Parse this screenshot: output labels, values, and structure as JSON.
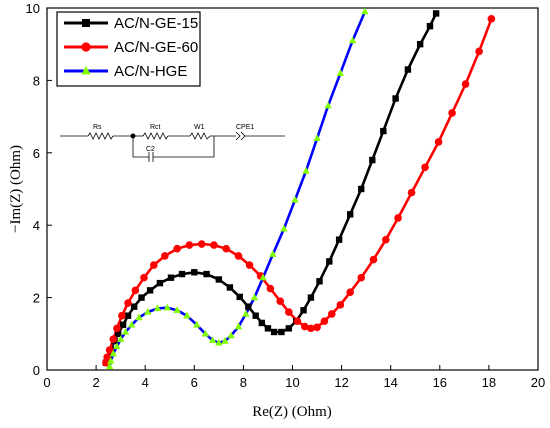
{
  "chart_data": {
    "type": "scatter",
    "xlabel": "Re(Z) (Ohm)",
    "ylabel": "−Im(Z) (Ohm)",
    "xlim": [
      0,
      20
    ],
    "ylim": [
      0,
      10
    ],
    "xticks": [
      0,
      2,
      4,
      6,
      8,
      10,
      12,
      14,
      16,
      18,
      20
    ],
    "yticks": [
      0,
      2,
      4,
      6,
      8,
      10
    ],
    "grid": false,
    "legend_position": "top-left",
    "series": [
      {
        "name": "AC/N-GE-15",
        "color": "#000000",
        "marker": "square",
        "x": [
          2.4,
          2.5,
          2.6,
          2.75,
          2.9,
          3.1,
          3.3,
          3.55,
          3.85,
          4.2,
          4.6,
          5.05,
          5.5,
          6.0,
          6.5,
          7.0,
          7.45,
          7.85,
          8.2,
          8.5,
          8.75,
          9.0,
          9.25,
          9.55,
          9.85,
          10.15,
          10.45,
          10.75,
          11.1,
          11.5,
          11.9,
          12.35,
          12.8,
          13.25,
          13.7,
          14.2,
          14.7,
          15.2,
          15.6,
          15.85
        ],
        "y": [
          0.2,
          0.35,
          0.55,
          0.8,
          1.0,
          1.25,
          1.5,
          1.75,
          2.0,
          2.2,
          2.4,
          2.55,
          2.65,
          2.7,
          2.65,
          2.5,
          2.28,
          2.02,
          1.75,
          1.5,
          1.3,
          1.15,
          1.05,
          1.05,
          1.15,
          1.35,
          1.65,
          2.0,
          2.45,
          3.0,
          3.6,
          4.3,
          5.0,
          5.8,
          6.6,
          7.5,
          8.3,
          9.0,
          9.5,
          9.85
        ]
      },
      {
        "name": "AC/N-GE-60",
        "color": "#ff0000",
        "marker": "circle",
        "x": [
          2.4,
          2.45,
          2.55,
          2.7,
          2.85,
          3.05,
          3.3,
          3.6,
          3.95,
          4.35,
          4.8,
          5.3,
          5.8,
          6.3,
          6.8,
          7.3,
          7.8,
          8.25,
          8.7,
          9.1,
          9.5,
          9.85,
          10.2,
          10.5,
          10.75,
          11.0,
          11.3,
          11.6,
          11.95,
          12.35,
          12.8,
          13.3,
          13.8,
          14.3,
          14.85,
          15.4,
          15.95,
          16.5,
          17.05,
          17.6,
          18.1
        ],
        "y": [
          0.2,
          0.35,
          0.55,
          0.85,
          1.15,
          1.5,
          1.85,
          2.2,
          2.55,
          2.9,
          3.15,
          3.35,
          3.45,
          3.48,
          3.45,
          3.35,
          3.15,
          2.9,
          2.6,
          2.25,
          1.9,
          1.6,
          1.35,
          1.2,
          1.15,
          1.18,
          1.35,
          1.55,
          1.8,
          2.15,
          2.55,
          3.05,
          3.6,
          4.2,
          4.9,
          5.6,
          6.3,
          7.1,
          7.9,
          8.8,
          9.7
        ]
      },
      {
        "name": "AC/N-HGE",
        "color": "#0000ff",
        "marker": "triangle",
        "marker_color": "#7fff00",
        "x": [
          2.55,
          2.6,
          2.7,
          2.85,
          3.0,
          3.2,
          3.45,
          3.75,
          4.1,
          4.5,
          4.9,
          5.3,
          5.7,
          6.1,
          6.45,
          6.75,
          7.0,
          7.25,
          7.5,
          7.8,
          8.1,
          8.45,
          8.8,
          9.2,
          9.65,
          10.1,
          10.55,
          11.0,
          11.45,
          11.95,
          12.45,
          12.95
        ],
        "y": [
          0.1,
          0.25,
          0.45,
          0.65,
          0.85,
          1.05,
          1.25,
          1.45,
          1.6,
          1.7,
          1.72,
          1.65,
          1.5,
          1.25,
          1.0,
          0.82,
          0.75,
          0.8,
          0.95,
          1.2,
          1.55,
          2.0,
          2.55,
          3.2,
          3.9,
          4.7,
          5.5,
          6.4,
          7.3,
          8.2,
          9.1,
          9.9
        ]
      }
    ]
  },
  "circuit": {
    "labels": [
      "Rs",
      "Rct",
      "W1",
      "CPE1",
      "C2"
    ]
  }
}
